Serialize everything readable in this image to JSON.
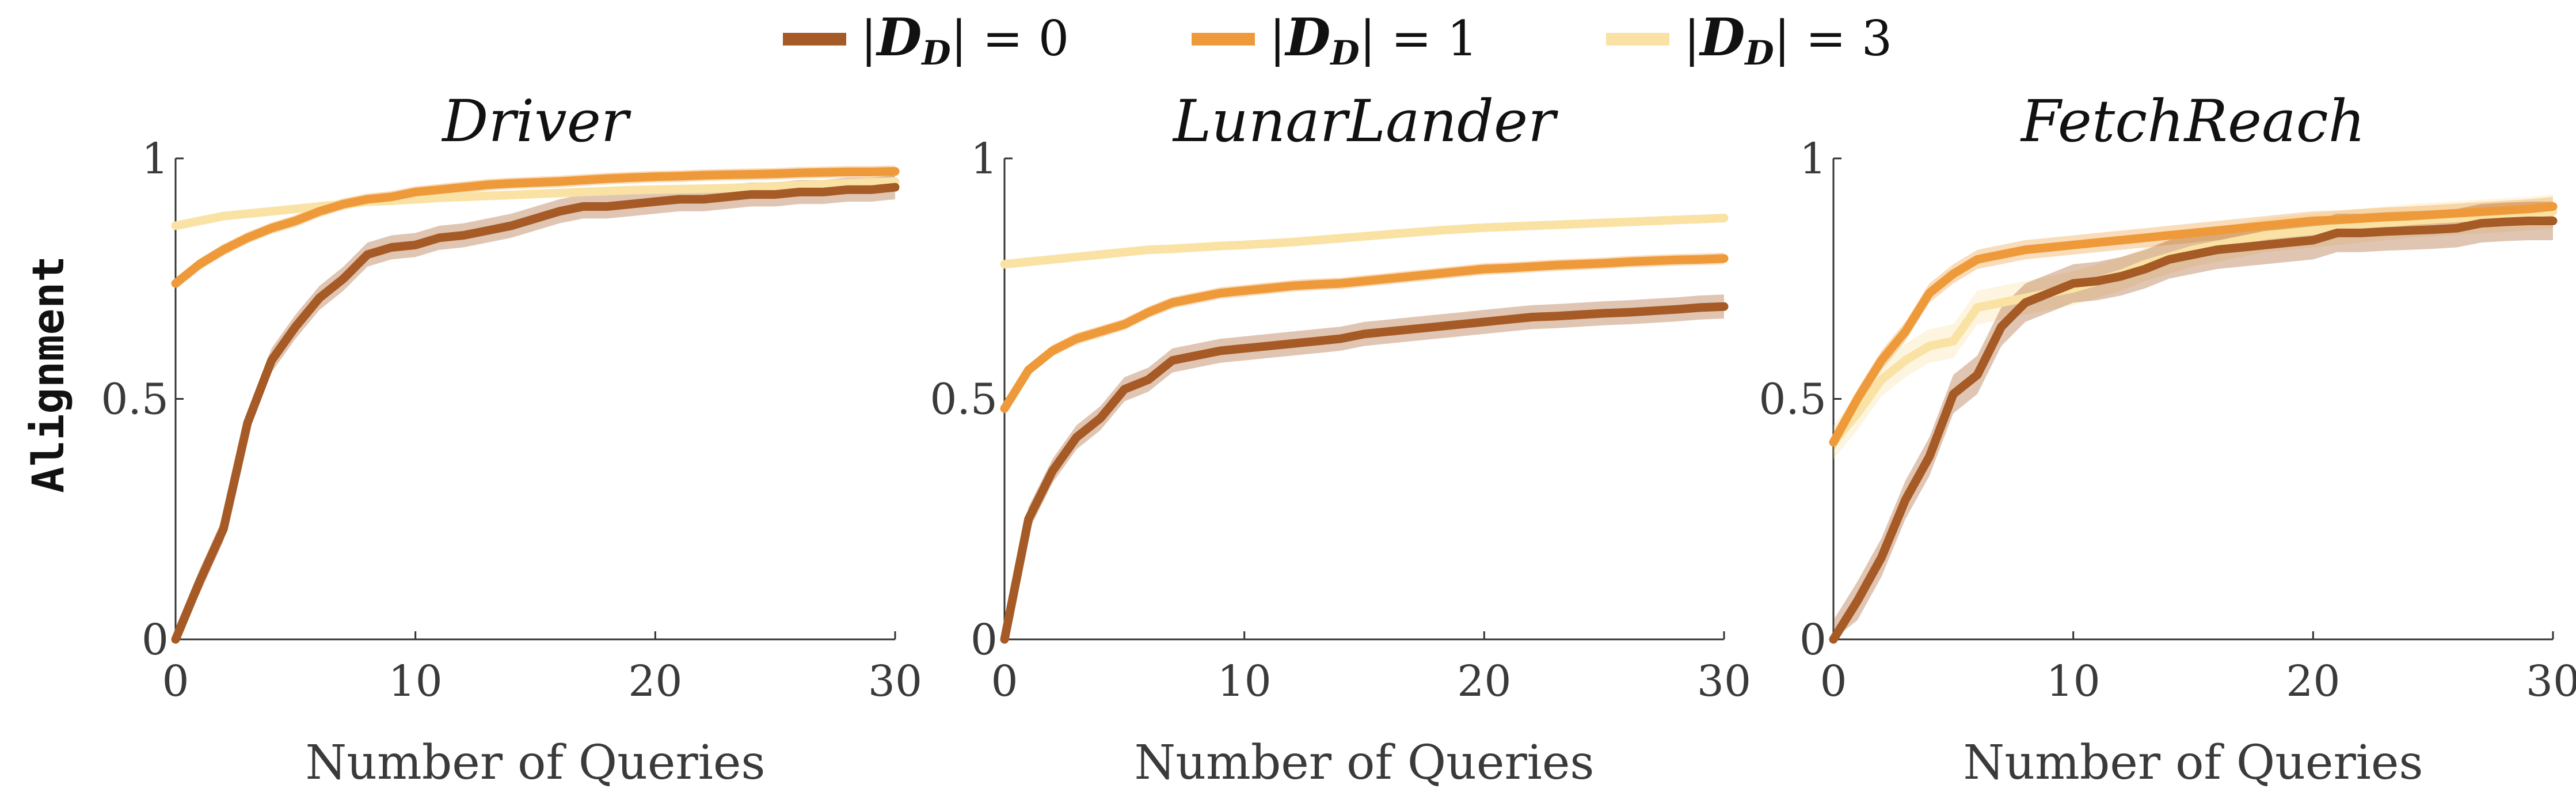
{
  "figure": {
    "ylabel": "Alignment",
    "xlabel": "Number of Queries",
    "colors": {
      "d0": "#a65a26",
      "d1": "#ef9a3a",
      "d3": "#f9e2a3"
    },
    "legend": [
      {
        "key": "d0",
        "label": "= 0",
        "math": "|D_D|"
      },
      {
        "key": "d1",
        "label": "= 1",
        "math": "|D_D|"
      },
      {
        "key": "d3",
        "label": "= 3",
        "math": "|D_D|"
      }
    ]
  },
  "chart_data": [
    {
      "type": "line",
      "title": "Driver",
      "xlabel": "Number of Queries",
      "ylabel": "Alignment",
      "xlim": [
        0,
        30
      ],
      "ylim": [
        0,
        1
      ],
      "xticks": [
        "0",
        "10",
        "20",
        "30"
      ],
      "yticks": [
        "0",
        "0.5",
        "1"
      ],
      "x": [
        0,
        1,
        2,
        3,
        4,
        5,
        6,
        7,
        8,
        9,
        10,
        11,
        12,
        13,
        14,
        15,
        16,
        17,
        18,
        19,
        20,
        21,
        22,
        23,
        24,
        25,
        26,
        27,
        28,
        29,
        30
      ],
      "series": [
        {
          "name": "|D_D| = 0",
          "key": "d0",
          "band": 0.025,
          "values": [
            0,
            0.12,
            0.23,
            0.45,
            0.58,
            0.65,
            0.71,
            0.75,
            0.8,
            0.815,
            0.82,
            0.835,
            0.84,
            0.85,
            0.86,
            0.875,
            0.89,
            0.9,
            0.9,
            0.905,
            0.91,
            0.915,
            0.915,
            0.92,
            0.925,
            0.925,
            0.93,
            0.93,
            0.935,
            0.935,
            0.94
          ]
        },
        {
          "name": "|D_D| = 1",
          "key": "d1",
          "band": 0.012,
          "values": [
            0.74,
            0.78,
            0.81,
            0.835,
            0.855,
            0.87,
            0.89,
            0.905,
            0.915,
            0.92,
            0.93,
            0.935,
            0.94,
            0.945,
            0.948,
            0.95,
            0.952,
            0.955,
            0.958,
            0.96,
            0.962,
            0.963,
            0.965,
            0.966,
            0.967,
            0.968,
            0.97,
            0.971,
            0.972,
            0.972,
            0.973
          ]
        },
        {
          "name": "|D_D| = 3",
          "key": "d3",
          "band": 0.008,
          "values": [
            0.86,
            0.87,
            0.88,
            0.885,
            0.89,
            0.895,
            0.9,
            0.905,
            0.91,
            0.912,
            0.915,
            0.918,
            0.92,
            0.922,
            0.924,
            0.926,
            0.928,
            0.93,
            0.932,
            0.934,
            0.935,
            0.936,
            0.937,
            0.938,
            0.94,
            0.942,
            0.944,
            0.946,
            0.948,
            0.95,
            0.952
          ]
        }
      ]
    },
    {
      "type": "line",
      "title": "LunarLander",
      "xlabel": "Number of Queries",
      "ylabel": "Alignment",
      "xlim": [
        0,
        30
      ],
      "ylim": [
        0,
        1
      ],
      "xticks": [
        "0",
        "10",
        "20",
        "30"
      ],
      "yticks": [
        "0",
        "0.5",
        "1"
      ],
      "x": [
        0,
        1,
        2,
        3,
        4,
        5,
        6,
        7,
        8,
        9,
        10,
        11,
        12,
        13,
        14,
        15,
        16,
        17,
        18,
        19,
        20,
        21,
        22,
        23,
        24,
        25,
        26,
        27,
        28,
        29,
        30
      ],
      "series": [
        {
          "name": "|D_D| = 0",
          "key": "d0",
          "band": 0.025,
          "values": [
            0,
            0.25,
            0.35,
            0.42,
            0.46,
            0.52,
            0.54,
            0.58,
            0.59,
            0.6,
            0.605,
            0.61,
            0.615,
            0.62,
            0.625,
            0.635,
            0.64,
            0.645,
            0.65,
            0.655,
            0.66,
            0.665,
            0.67,
            0.672,
            0.675,
            0.678,
            0.68,
            0.683,
            0.686,
            0.69,
            0.692
          ]
        },
        {
          "name": "|D_D| = 1",
          "key": "d1",
          "band": 0.012,
          "values": [
            0.48,
            0.56,
            0.6,
            0.625,
            0.64,
            0.655,
            0.68,
            0.7,
            0.71,
            0.72,
            0.725,
            0.73,
            0.735,
            0.738,
            0.74,
            0.745,
            0.75,
            0.755,
            0.76,
            0.765,
            0.77,
            0.772,
            0.775,
            0.778,
            0.78,
            0.782,
            0.785,
            0.787,
            0.789,
            0.79,
            0.792
          ]
        },
        {
          "name": "|D_D| = 3",
          "key": "d3",
          "band": 0.008,
          "values": [
            0.78,
            0.785,
            0.79,
            0.795,
            0.8,
            0.805,
            0.81,
            0.812,
            0.815,
            0.818,
            0.82,
            0.823,
            0.826,
            0.83,
            0.834,
            0.838,
            0.842,
            0.846,
            0.85,
            0.853,
            0.856,
            0.858,
            0.86,
            0.862,
            0.864,
            0.866,
            0.868,
            0.87,
            0.872,
            0.874,
            0.876
          ]
        }
      ]
    },
    {
      "type": "line",
      "title": "FetchReach",
      "xlabel": "Number of Queries",
      "ylabel": "Alignment",
      "xlim": [
        0,
        30
      ],
      "ylim": [
        0,
        1
      ],
      "xticks": [
        "0",
        "10",
        "20",
        "30"
      ],
      "yticks": [
        "0",
        "0.5",
        "1"
      ],
      "x": [
        0,
        1,
        2,
        3,
        4,
        5,
        6,
        7,
        8,
        9,
        10,
        11,
        12,
        13,
        14,
        15,
        16,
        17,
        18,
        19,
        20,
        21,
        22,
        23,
        24,
        25,
        26,
        27,
        28,
        29,
        30
      ],
      "series": [
        {
          "name": "|D_D| = 0",
          "key": "d0",
          "band": 0.04,
          "values": [
            0,
            0.08,
            0.17,
            0.29,
            0.38,
            0.51,
            0.55,
            0.65,
            0.7,
            0.72,
            0.74,
            0.745,
            0.755,
            0.77,
            0.79,
            0.8,
            0.81,
            0.815,
            0.82,
            0.825,
            0.83,
            0.845,
            0.845,
            0.848,
            0.85,
            0.852,
            0.855,
            0.865,
            0.868,
            0.87,
            0.87
          ]
        },
        {
          "name": "|D_D| = 1",
          "key": "d1",
          "band": 0.02,
          "values": [
            0.41,
            0.5,
            0.58,
            0.64,
            0.72,
            0.76,
            0.79,
            0.8,
            0.81,
            0.815,
            0.82,
            0.825,
            0.83,
            0.835,
            0.84,
            0.845,
            0.85,
            0.855,
            0.86,
            0.865,
            0.87,
            0.872,
            0.875,
            0.878,
            0.88,
            0.883,
            0.886,
            0.889,
            0.892,
            0.895,
            0.9
          ]
        },
        {
          "name": "|D_D| = 3",
          "key": "d3",
          "band": 0.035,
          "values": [
            0.41,
            0.47,
            0.54,
            0.58,
            0.61,
            0.62,
            0.69,
            0.7,
            0.71,
            0.72,
            0.73,
            0.745,
            0.76,
            0.78,
            0.795,
            0.81,
            0.82,
            0.83,
            0.84,
            0.845,
            0.85,
            0.855,
            0.86,
            0.865,
            0.87,
            0.873,
            0.876,
            0.879,
            0.882,
            0.885,
            0.89
          ]
        }
      ]
    }
  ]
}
